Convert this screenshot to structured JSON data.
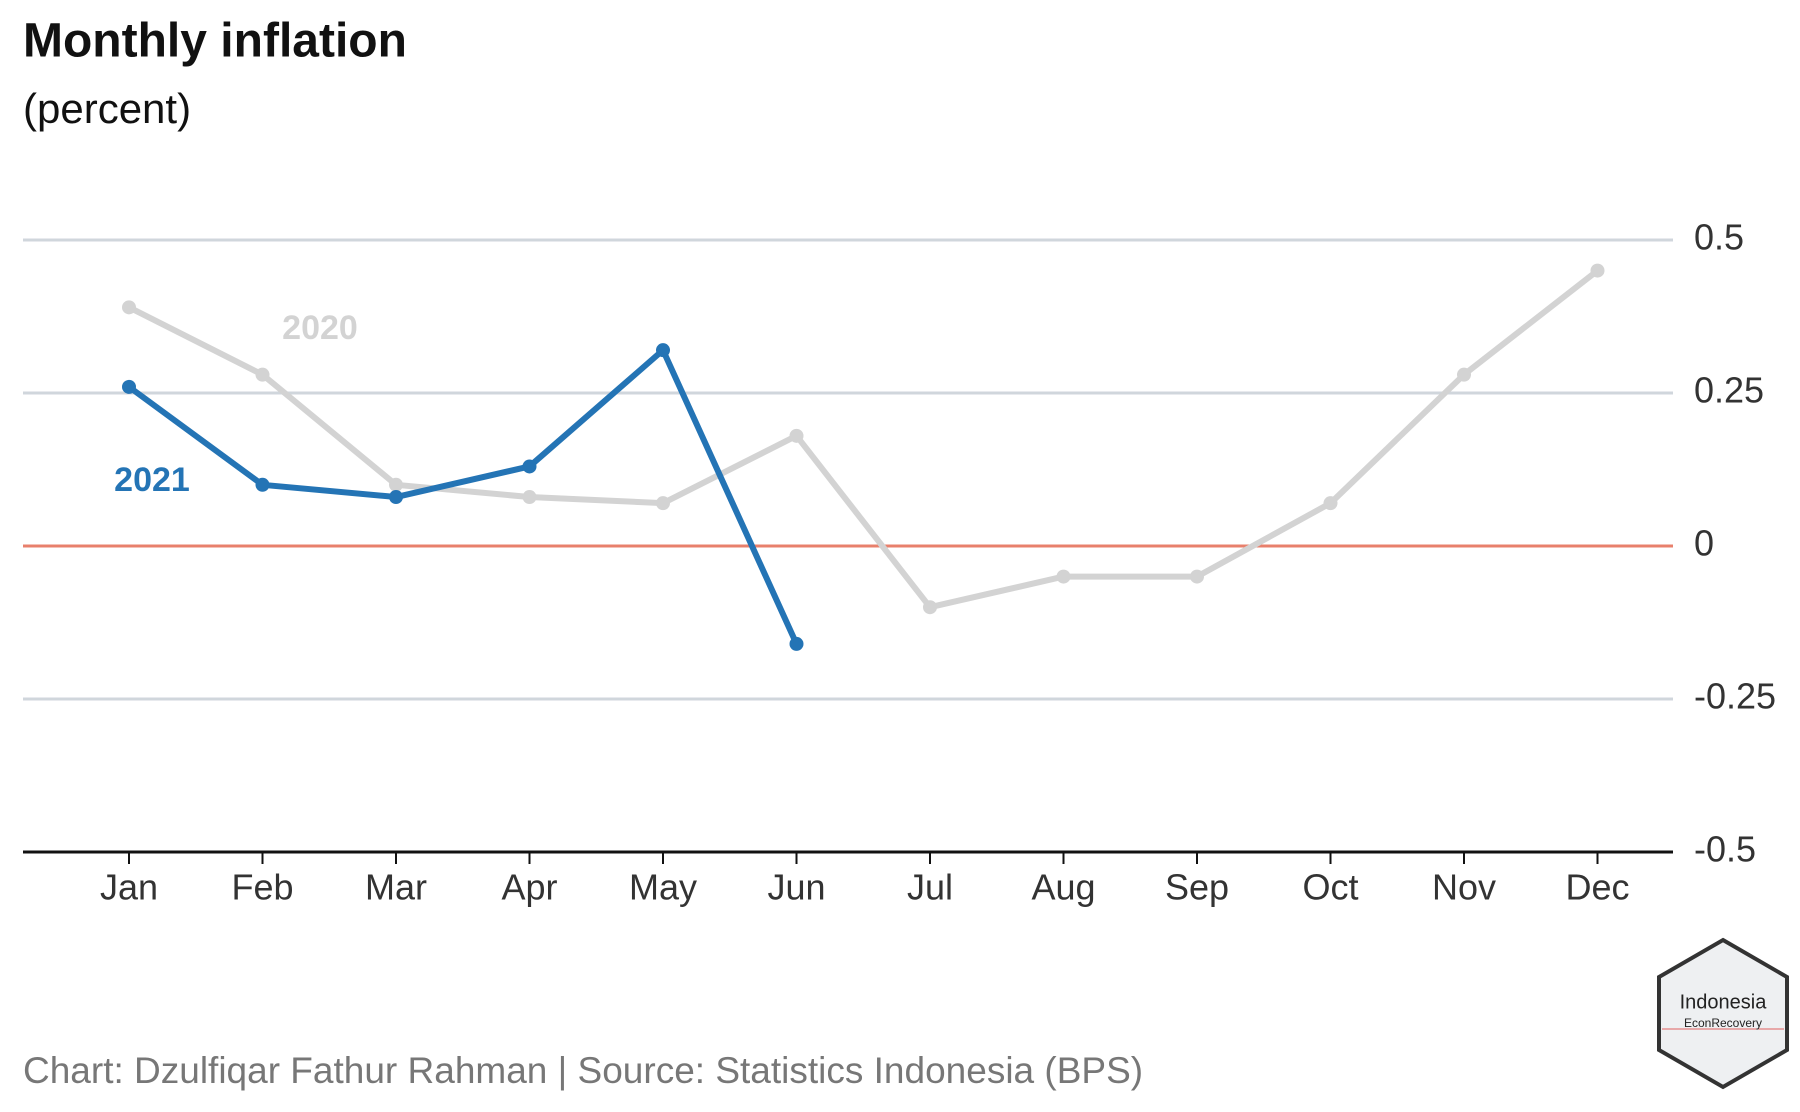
{
  "chart_data": {
    "type": "line",
    "title": "Monthly inflation",
    "subtitle": "(percent)",
    "categories": [
      "Jan",
      "Feb",
      "Mar",
      "Apr",
      "May",
      "Jun",
      "Jul",
      "Aug",
      "Sep",
      "Oct",
      "Nov",
      "Dec"
    ],
    "series": [
      {
        "name": "2020",
        "color": "#d3d3d3",
        "values": [
          0.39,
          0.28,
          0.1,
          0.08,
          0.07,
          0.18,
          -0.1,
          -0.05,
          -0.05,
          0.07,
          0.28,
          0.45
        ]
      },
      {
        "name": "2021",
        "color": "#2474b5",
        "values": [
          0.26,
          0.1,
          0.08,
          0.13,
          0.32,
          -0.16,
          null,
          null,
          null,
          null,
          null,
          null
        ]
      }
    ],
    "ylim": [
      -0.5,
      0.5
    ],
    "yticks": [
      -0.5,
      -0.25,
      0,
      0.25,
      0.5
    ],
    "grid": true,
    "caption": "Chart: Dzulfiqar Fathur Rahman | Source: Statistics Indonesia (BPS)"
  },
  "logo": {
    "line1": "Indonesia",
    "line2": "EconRecovery"
  }
}
